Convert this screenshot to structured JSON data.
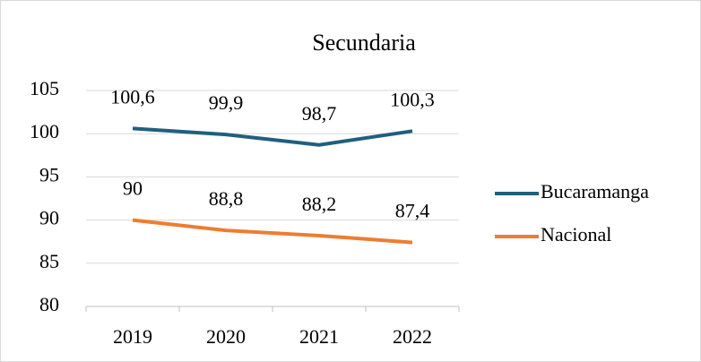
{
  "chart_data": {
    "type": "line",
    "title": "Secundaria",
    "categories": [
      "2019",
      "2020",
      "2021",
      "2022"
    ],
    "series": [
      {
        "name": "Bucaramanga",
        "color": "#1f5f7f",
        "values": [
          100.6,
          99.9,
          98.7,
          100.3
        ],
        "value_labels": [
          "100,6",
          "99,9",
          "98,7",
          "100,3"
        ]
      },
      {
        "name": "Nacional",
        "color": "#ed7d31",
        "values": [
          90,
          88.8,
          88.2,
          87.4
        ],
        "value_labels": [
          "90",
          "88,8",
          "88,2",
          "87,4"
        ]
      }
    ],
    "ylim": [
      80,
      105
    ],
    "yticks": [
      80,
      85,
      90,
      95,
      100,
      105
    ],
    "grid": true,
    "legend": "right"
  }
}
